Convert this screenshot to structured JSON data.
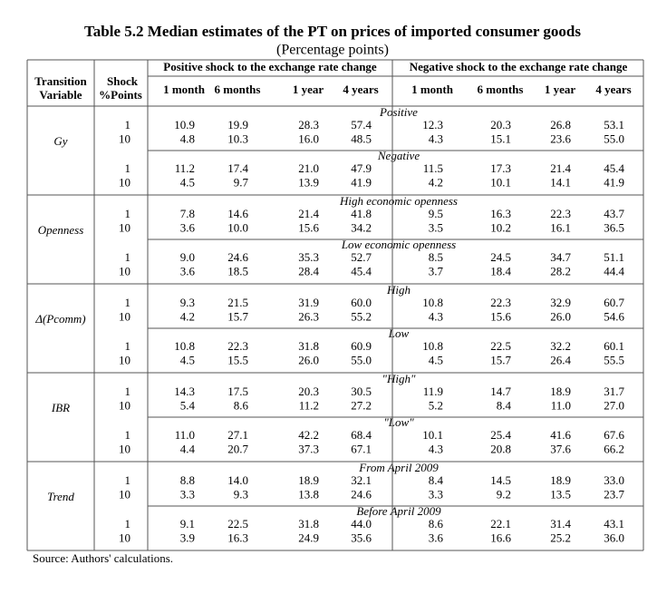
{
  "title": "Table 5.2 Median estimates of the PT on prices of imported consumer goods",
  "subtitle": "(Percentage points)",
  "header": {
    "transition_variable": [
      "Transition",
      "Variable"
    ],
    "shock": [
      "Shock",
      "%Points"
    ],
    "groups": [
      "Positive shock to the exchange rate change",
      "Negative shock to the exchange rate change"
    ],
    "columns": [
      "1 month",
      "6 months",
      "1 year",
      "4 years",
      "1 month",
      "6 months",
      "1 year",
      "4 years"
    ]
  },
  "blocks": [
    {
      "variable": "Gy",
      "subgroups": [
        {
          "label": "Positive",
          "rows": [
            {
              "shock": "1",
              "values": [
                "10.9",
                "19.9",
                "28.3",
                "57.4",
                "12.3",
                "20.3",
                "26.8",
                "53.1"
              ]
            },
            {
              "shock": "10",
              "values": [
                "4.8",
                "10.3",
                "16.0",
                "48.5",
                "4.3",
                "15.1",
                "23.6",
                "55.0"
              ]
            }
          ]
        },
        {
          "label": "Negative",
          "rows": [
            {
              "shock": "1",
              "values": [
                "11.2",
                "17.4",
                "21.0",
                "47.9",
                "11.5",
                "17.3",
                "21.4",
                "45.4"
              ]
            },
            {
              "shock": "10",
              "values": [
                "4.5",
                "9.7",
                "13.9",
                "41.9",
                "4.2",
                "10.1",
                "14.1",
                "41.9"
              ]
            }
          ]
        }
      ]
    },
    {
      "variable": "Openness",
      "subgroups": [
        {
          "label": "High economic openness",
          "rows": [
            {
              "shock": "1",
              "values": [
                "7.8",
                "14.6",
                "21.4",
                "41.8",
                "9.5",
                "16.3",
                "22.3",
                "43.7"
              ]
            },
            {
              "shock": "10",
              "values": [
                "3.6",
                "10.0",
                "15.6",
                "34.2",
                "3.5",
                "10.2",
                "16.1",
                "36.5"
              ]
            }
          ]
        },
        {
          "label": "Low economic openness",
          "rows": [
            {
              "shock": "1",
              "values": [
                "9.0",
                "24.6",
                "35.3",
                "52.7",
                "8.5",
                "24.5",
                "34.7",
                "51.1"
              ]
            },
            {
              "shock": "10",
              "values": [
                "3.6",
                "18.5",
                "28.4",
                "45.4",
                "3.7",
                "18.4",
                "28.2",
                "44.4"
              ]
            }
          ]
        }
      ]
    },
    {
      "variable": "Δ(Pcomm)",
      "subgroups": [
        {
          "label": "High",
          "rows": [
            {
              "shock": "1",
              "values": [
                "9.3",
                "21.5",
                "31.9",
                "60.0",
                "10.8",
                "22.3",
                "32.9",
                "60.7"
              ]
            },
            {
              "shock": "10",
              "values": [
                "4.2",
                "15.7",
                "26.3",
                "55.2",
                "4.3",
                "15.6",
                "26.0",
                "54.6"
              ]
            }
          ]
        },
        {
          "label": "Low",
          "rows": [
            {
              "shock": "1",
              "values": [
                "10.8",
                "22.3",
                "31.8",
                "60.9",
                "10.8",
                "22.5",
                "32.2",
                "60.1"
              ]
            },
            {
              "shock": "10",
              "values": [
                "4.5",
                "15.5",
                "26.0",
                "55.0",
                "4.5",
                "15.7",
                "26.4",
                "55.5"
              ]
            }
          ]
        }
      ]
    },
    {
      "variable": "IBR",
      "subgroups": [
        {
          "label": "\"High\"",
          "rows": [
            {
              "shock": "1",
              "values": [
                "14.3",
                "17.5",
                "20.3",
                "30.5",
                "11.9",
                "14.7",
                "18.9",
                "31.7"
              ]
            },
            {
              "shock": "10",
              "values": [
                "5.4",
                "8.6",
                "11.2",
                "27.2",
                "5.2",
                "8.4",
                "11.0",
                "27.0"
              ]
            }
          ]
        },
        {
          "label": "\"Low\"",
          "rows": [
            {
              "shock": "1",
              "values": [
                "11.0",
                "27.1",
                "42.2",
                "68.4",
                "10.1",
                "25.4",
                "41.6",
                "67.6"
              ]
            },
            {
              "shock": "10",
              "values": [
                "4.4",
                "20.7",
                "37.3",
                "67.1",
                "4.3",
                "20.8",
                "37.6",
                "66.2"
              ]
            }
          ]
        }
      ]
    },
    {
      "variable": "Trend",
      "subgroups": [
        {
          "label": "From April 2009",
          "rows": [
            {
              "shock": "1",
              "values": [
                "8.8",
                "14.0",
                "18.9",
                "32.1",
                "8.4",
                "14.5",
                "18.9",
                "33.0"
              ]
            },
            {
              "shock": "10",
              "values": [
                "3.3",
                "9.3",
                "13.8",
                "24.6",
                "3.3",
                "9.2",
                "13.5",
                "23.7"
              ]
            }
          ]
        },
        {
          "label": "Before April 2009",
          "rows": [
            {
              "shock": "1",
              "values": [
                "9.1",
                "22.5",
                "31.8",
                "44.0",
                "8.6",
                "22.1",
                "31.4",
                "43.1"
              ]
            },
            {
              "shock": "10",
              "values": [
                "3.9",
                "16.3",
                "24.9",
                "35.6",
                "3.6",
                "16.6",
                "25.2",
                "36.0"
              ]
            }
          ]
        }
      ]
    }
  ],
  "footer": {
    "source": "Source: Authors' calculations."
  }
}
